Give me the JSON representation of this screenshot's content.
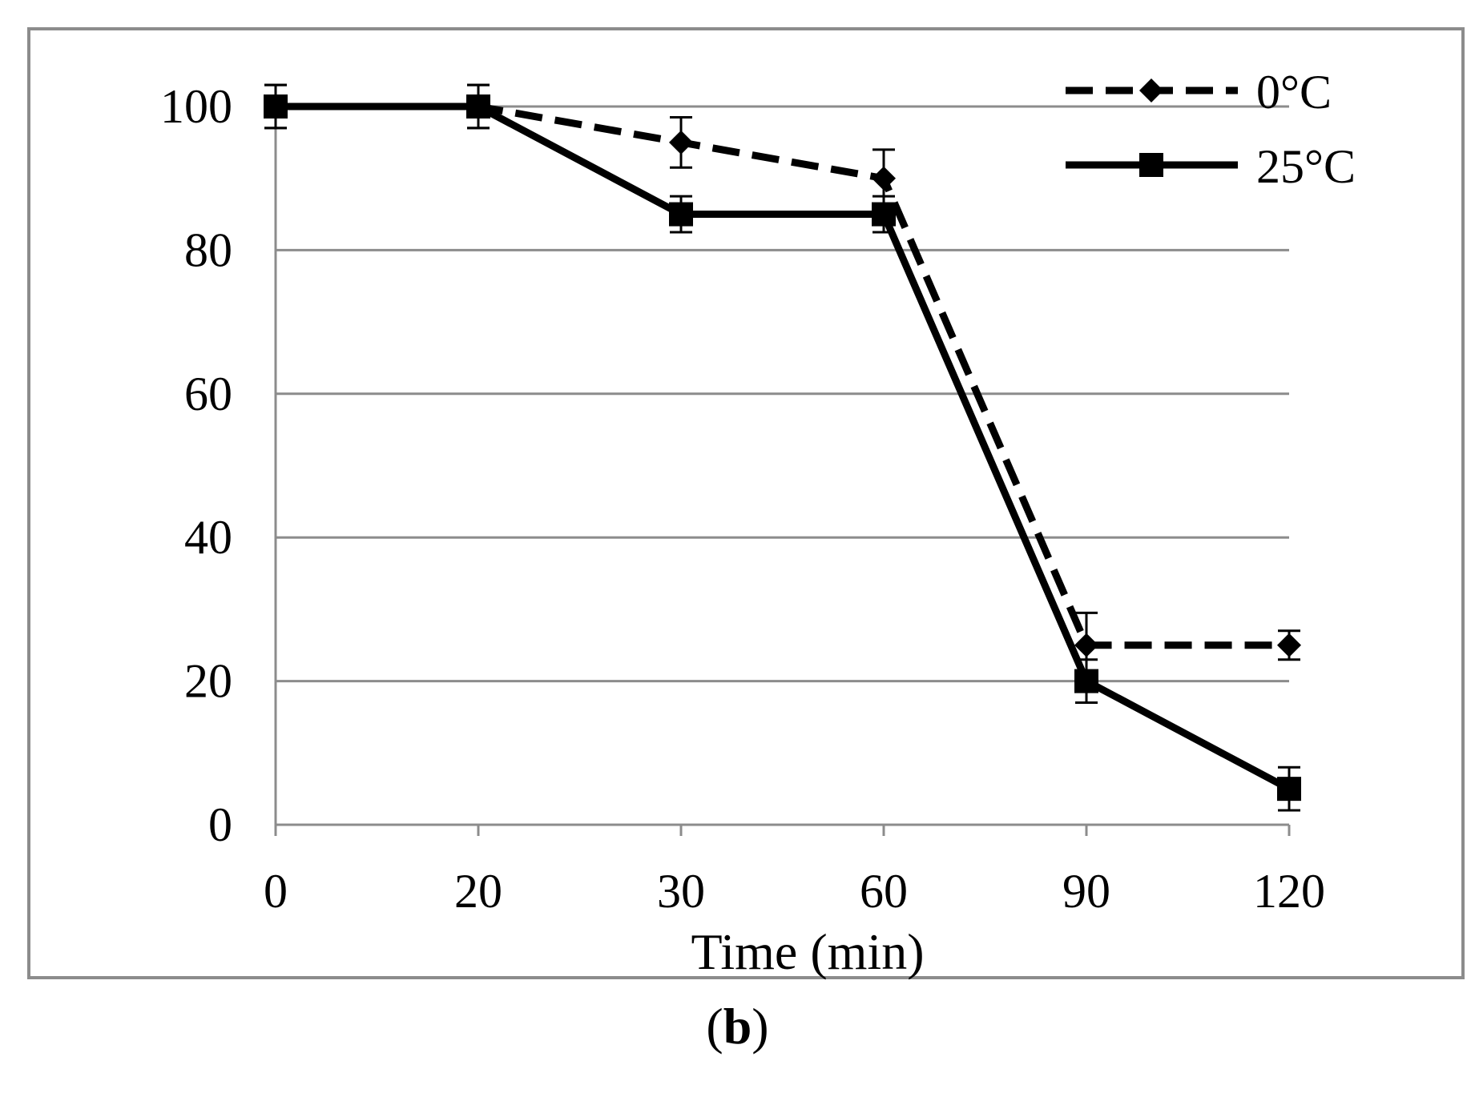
{
  "chart_data": {
    "type": "line",
    "title": "",
    "xlabel": "Time (min)",
    "ylabel": "",
    "categories": [
      "0",
      "20",
      "30",
      "60",
      "90",
      "120"
    ],
    "ylim": [
      0,
      100
    ],
    "yticks": [
      "0",
      "20",
      "40",
      "60",
      "80",
      "100"
    ],
    "grid": true,
    "legend_position": "top-right",
    "series": [
      {
        "name": "0°C",
        "values": [
          100,
          100,
          95,
          90,
          25,
          25
        ],
        "errors": [
          3,
          3,
          3.5,
          4,
          4.5,
          2
        ],
        "marker": "diamond",
        "line_style": "dashed",
        "color": "#000000"
      },
      {
        "name": "25°C",
        "values": [
          100,
          100,
          85,
          85,
          20,
          5
        ],
        "errors": [
          3,
          3,
          2.5,
          2.5,
          3,
          3
        ],
        "marker": "square",
        "line_style": "solid",
        "color": "#000000"
      }
    ]
  },
  "panel": {
    "open_paren": "(",
    "letter": "b",
    "close_paren": ")"
  },
  "colors": {
    "frame": "#8c8c8c",
    "grid": "#8c8c8c",
    "series": "#000000"
  }
}
